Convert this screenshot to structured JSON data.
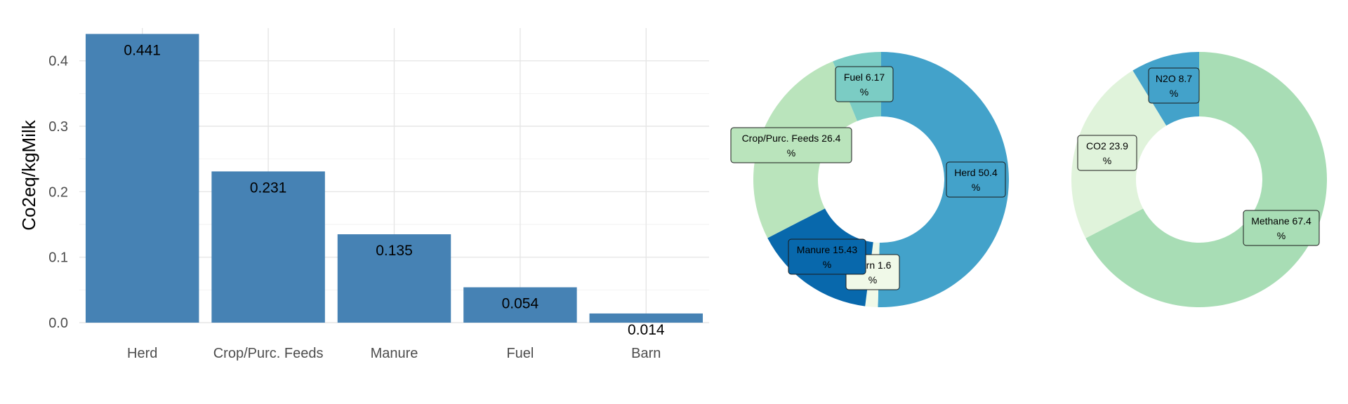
{
  "chart_data": [
    {
      "type": "bar",
      "ylabel": "Co2eq/kgMilk",
      "xlabel": "",
      "categories": [
        "Herd",
        "Crop/Purc. Feeds",
        "Manure",
        "Fuel",
        "Barn"
      ],
      "values": [
        0.441,
        0.231,
        0.135,
        0.054,
        0.014
      ],
      "value_labels": [
        "0.441",
        "0.231",
        "0.135",
        "0.054",
        "0.014"
      ],
      "ylim": [
        0,
        0.45
      ],
      "yticks": [
        0.0,
        0.1,
        0.2,
        0.3,
        0.4
      ],
      "ytick_labels": [
        "0.0",
        "0.1",
        "0.2",
        "0.3",
        "0.4"
      ],
      "bar_color": "#4682B4",
      "grid": true
    },
    {
      "type": "pie",
      "donut": true,
      "slices": [
        {
          "label": "Herd",
          "value": 50.4,
          "text": "Herd 50.4",
          "unit": "%",
          "color": "#43A2CA"
        },
        {
          "label": "Barn",
          "value": 1.6,
          "text": "Barn 1.6",
          "unit": "%",
          "color": "#F0F9E8"
        },
        {
          "label": "Manure",
          "value": 15.43,
          "text": "Manure 15.43",
          "unit": "%",
          "color": "#0868AC"
        },
        {
          "label": "Crop/Purc. Feeds",
          "value": 26.4,
          "text": "Crop/Purc. Feeds 26.4",
          "unit": "%",
          "color": "#BAE4BC"
        },
        {
          "label": "Fuel",
          "value": 6.17,
          "text": "Fuel 6.17",
          "unit": "%",
          "color": "#7BCCC4"
        }
      ]
    },
    {
      "type": "pie",
      "donut": true,
      "slices": [
        {
          "label": "Methane",
          "value": 67.4,
          "text": "Methane 67.4",
          "unit": "%",
          "color": "#A8DDB5"
        },
        {
          "label": "CO2",
          "value": 23.9,
          "text": "CO2 23.9",
          "unit": "%",
          "color": "#E0F3DB"
        },
        {
          "label": "N2O",
          "value": 8.7,
          "text": "N2O 8.7",
          "unit": "%",
          "color": "#43A2CA"
        }
      ]
    }
  ]
}
